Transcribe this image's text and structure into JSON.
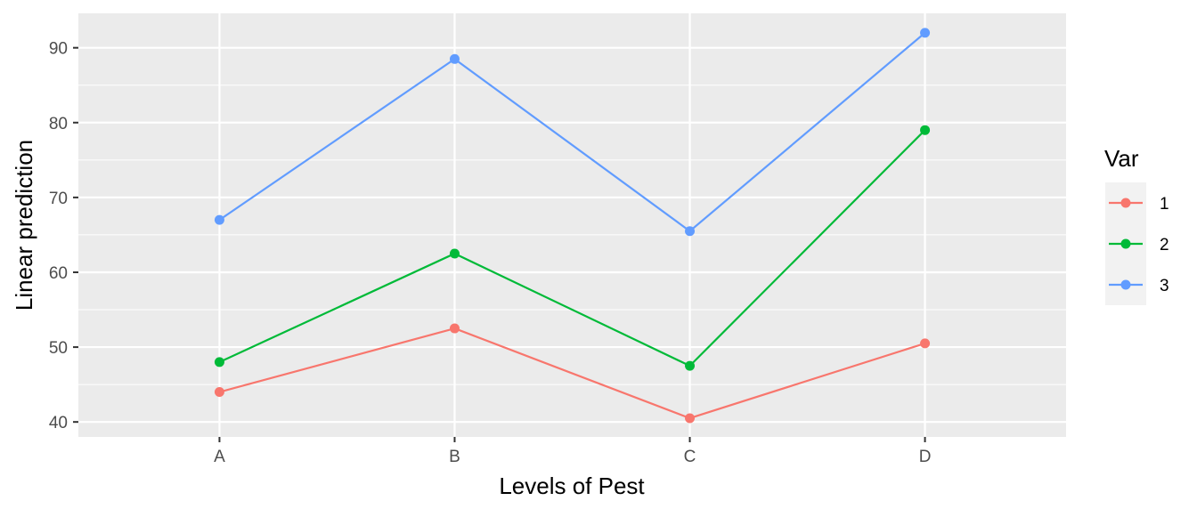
{
  "chart_data": {
    "type": "line",
    "title": "",
    "xlabel": "Levels of Pest",
    "ylabel": "Linear prediction",
    "categories": [
      "A",
      "B",
      "C",
      "D"
    ],
    "ylim": [
      38,
      94.6
    ],
    "yticks": [
      40,
      50,
      60,
      70,
      80,
      90
    ],
    "grid": true,
    "legend": {
      "title": "Var",
      "placement": "right"
    },
    "series": [
      {
        "name": "1",
        "color": "#F8766D",
        "values": [
          44,
          52.5,
          40.5,
          50.5
        ]
      },
      {
        "name": "2",
        "color": "#00BA38",
        "values": [
          48,
          62.5,
          47.5,
          79
        ]
      },
      {
        "name": "3",
        "color": "#619CFF",
        "values": [
          67,
          88.5,
          65.5,
          92
        ]
      }
    ],
    "panel_background": "#EBEBEB"
  }
}
